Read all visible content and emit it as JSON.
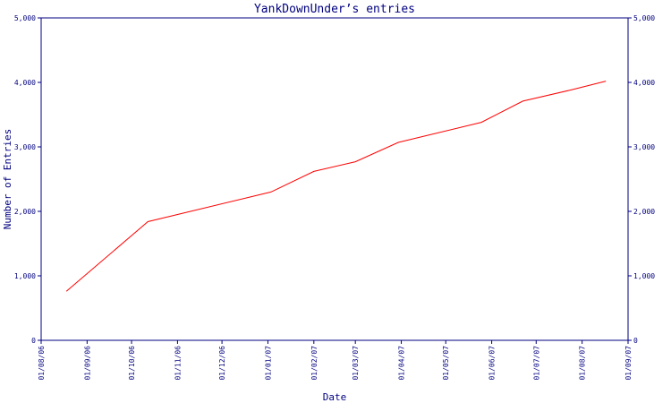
{
  "chart_data": {
    "type": "line",
    "title": "YankDownUnder’s entries",
    "xlabel": "Date",
    "ylabel": "Number of Entries",
    "series": [
      {
        "name": "entries",
        "color": "#ff0000",
        "x": [
          "2006-08-18",
          "2006-10-12",
          "2007-01-03",
          "2007-02-01",
          "2007-03-01",
          "2007-03-30",
          "2007-05-25",
          "2007-06-22",
          "2007-07-24",
          "2007-08-17"
        ],
        "values": [
          760,
          1840,
          2300,
          2620,
          2770,
          3070,
          3380,
          3710,
          3880,
          4020
        ]
      }
    ],
    "xlim": [
      "2006-08-01",
      "2007-09-01"
    ],
    "xticks": [
      {
        "value": "2006-08-01",
        "label": "01/08/06"
      },
      {
        "value": "2006-09-01",
        "label": "01/09/06"
      },
      {
        "value": "2006-10-01",
        "label": "01/10/06"
      },
      {
        "value": "2006-11-01",
        "label": "01/11/06"
      },
      {
        "value": "2006-12-01",
        "label": "01/12/06"
      },
      {
        "value": "2007-01-01",
        "label": "01/01/07"
      },
      {
        "value": "2007-02-01",
        "label": "01/02/07"
      },
      {
        "value": "2007-03-01",
        "label": "01/03/07"
      },
      {
        "value": "2007-04-01",
        "label": "01/04/07"
      },
      {
        "value": "2007-05-01",
        "label": "01/05/07"
      },
      {
        "value": "2007-06-01",
        "label": "01/06/07"
      },
      {
        "value": "2007-07-01",
        "label": "01/07/07"
      },
      {
        "value": "2007-08-01",
        "label": "01/08/07"
      },
      {
        "value": "2007-09-01",
        "label": "01/09/07"
      }
    ],
    "ylim": [
      0,
      5000
    ],
    "yticks": [
      0,
      {
        "value": 1000,
        "label": "1,000"
      },
      {
        "value": 2000,
        "label": "2,000"
      },
      {
        "value": 3000,
        "label": "3,000"
      },
      {
        "value": 4000,
        "label": "4,000"
      },
      {
        "value": 5000,
        "label": "5,000"
      }
    ],
    "y2lim": [
      0,
      5000
    ],
    "y2ticks": [
      0,
      {
        "value": 1000,
        "label": "1,000"
      },
      {
        "value": 2000,
        "label": "2,000"
      },
      {
        "value": 3000,
        "label": "3,000"
      },
      {
        "value": 4000,
        "label": "4,000"
      },
      {
        "value": 5000,
        "label": "5,000"
      }
    ],
    "grid": false
  }
}
